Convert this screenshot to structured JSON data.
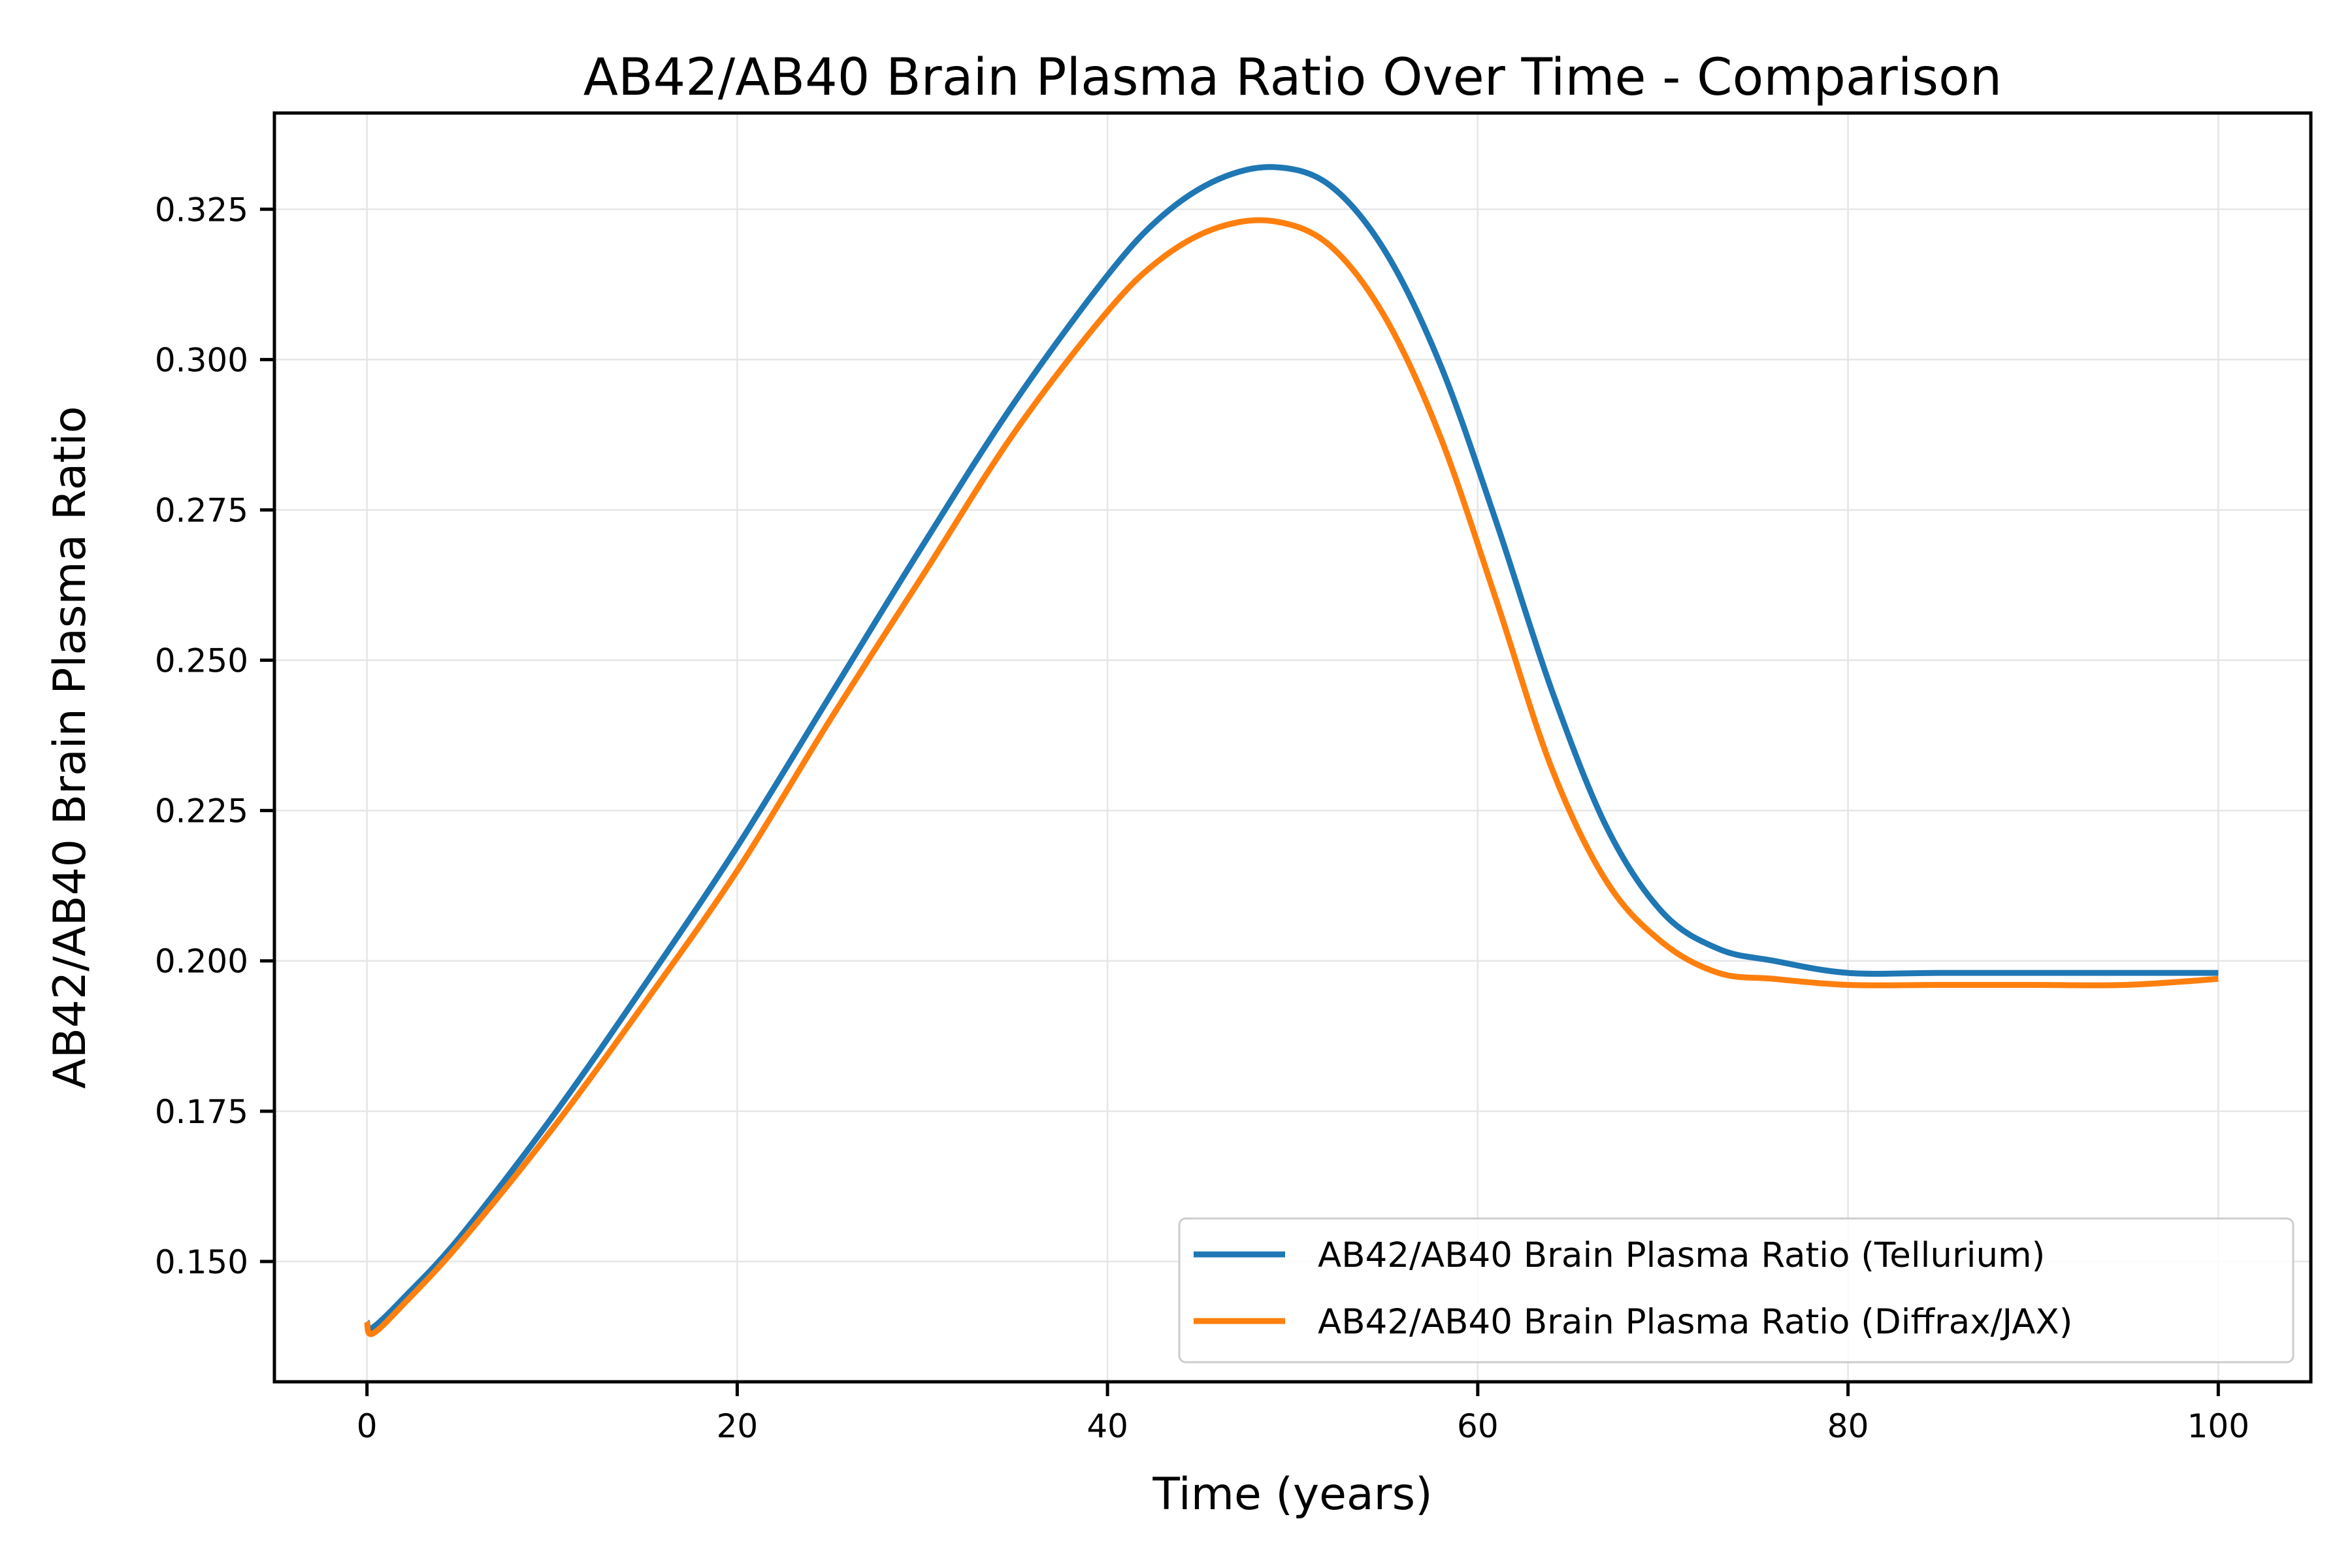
{
  "chart_data": {
    "type": "line",
    "title": "AB42/AB40 Brain Plasma Ratio Over Time - Comparison",
    "xlabel": "Time (years)",
    "ylabel": "AB42/AB40 Brain Plasma Ratio",
    "xlim": [
      -5,
      105
    ],
    "ylim": [
      0.13,
      0.341
    ],
    "xticks": [
      0,
      20,
      40,
      60,
      80,
      100
    ],
    "xtick_labels": [
      "0",
      "20",
      "40",
      "60",
      "80",
      "100"
    ],
    "yticks": [
      0.15,
      0.175,
      0.2,
      0.225,
      0.25,
      0.275,
      0.3,
      0.325
    ],
    "ytick_labels": [
      "0.150",
      "0.175",
      "0.200",
      "0.225",
      "0.250",
      "0.275",
      "0.300",
      "0.325"
    ],
    "grid": true,
    "legend_position": "lower-right",
    "series": [
      {
        "name": "AB42/AB40 Brain Plasma Ratio (Tellurium)",
        "color": "#1f77b4",
        "x": [
          0,
          0.3,
          2,
          5,
          10,
          15,
          20,
          25,
          30,
          35,
          40,
          43,
          46,
          49,
          52,
          55,
          58,
          61,
          64,
          67,
          70,
          73,
          76,
          80,
          85,
          90,
          95,
          100
        ],
        "y": [
          0.14,
          0.139,
          0.144,
          0.154,
          0.174,
          0.196,
          0.219,
          0.244,
          0.269,
          0.293,
          0.314,
          0.324,
          0.33,
          0.332,
          0.329,
          0.318,
          0.299,
          0.273,
          0.245,
          0.222,
          0.208,
          0.202,
          0.2,
          0.198,
          0.198,
          0.198,
          0.198,
          0.198
        ]
      },
      {
        "name": "AB42/AB40 Brain Plasma Ratio (Diffrax/JAX)",
        "color": "#ff7f0e",
        "x": [
          0,
          0.3,
          2,
          5,
          10,
          15,
          20,
          25,
          30,
          35,
          40,
          43,
          46,
          49,
          52,
          55,
          58,
          61,
          64,
          67,
          70,
          73,
          76,
          80,
          85,
          90,
          95,
          100
        ],
        "y": [
          0.14,
          0.138,
          0.143,
          0.153,
          0.172,
          0.193,
          0.215,
          0.24,
          0.264,
          0.288,
          0.308,
          0.317,
          0.322,
          0.323,
          0.319,
          0.307,
          0.287,
          0.26,
          0.232,
          0.213,
          0.203,
          0.198,
          0.197,
          0.196,
          0.196,
          0.196,
          0.196,
          0.197
        ]
      }
    ]
  }
}
